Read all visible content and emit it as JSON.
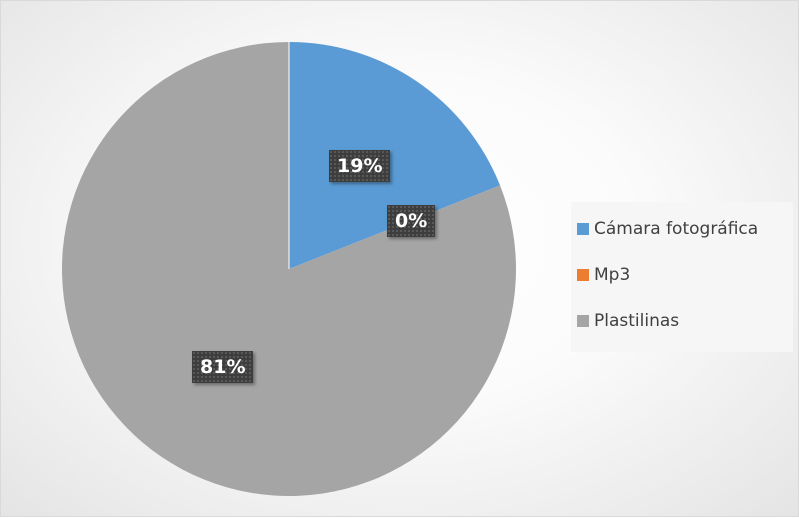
{
  "chart_data": {
    "type": "pie",
    "categories": [
      "Cámara fotográfica",
      "Mp3",
      "Plastilinas"
    ],
    "values": [
      19,
      0,
      81
    ],
    "labels": [
      "19%",
      "0%",
      "81%"
    ],
    "colors": [
      "#5b9bd5",
      "#ed7d31",
      "#a5a5a5"
    ],
    "legend_position": "right",
    "title": ""
  }
}
